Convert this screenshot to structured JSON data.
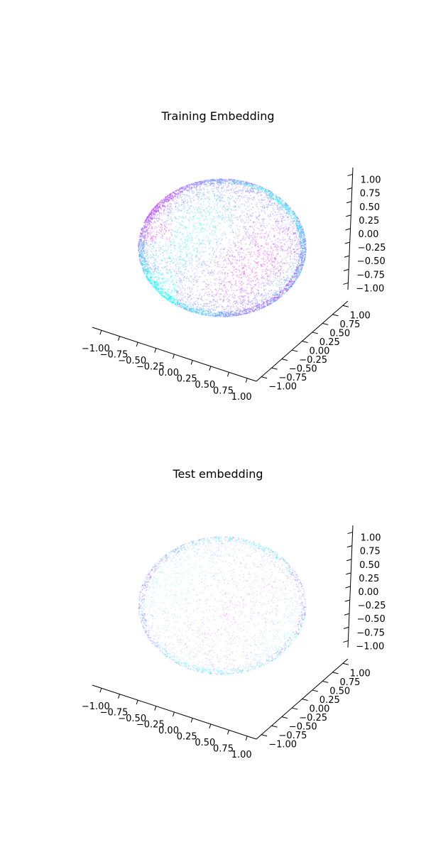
{
  "figure": {
    "background": "#ffffff"
  },
  "chart_data": [
    {
      "type": "scatter",
      "projection": "3d",
      "title": "Training Embedding",
      "shape": "unit sphere surface",
      "x_range": [
        -1,
        1
      ],
      "y_range": [
        -1,
        1
      ],
      "z_range": [
        -1,
        1
      ],
      "x_ticks": [
        "−1.00",
        "−0.75",
        "−0.50",
        "−0.25",
        "0.00",
        "0.25",
        "0.50",
        "0.75",
        "1.00"
      ],
      "y_ticks": [
        "−1.00",
        "−0.75",
        "−0.50",
        "−0.25",
        "0.00",
        "0.25",
        "0.50",
        "0.75",
        "1.00"
      ],
      "z_ticks": [
        "−1.00",
        "−0.75",
        "−0.50",
        "−0.25",
        "0.00",
        "0.25",
        "0.50",
        "0.75",
        "1.00"
      ],
      "grid": false,
      "colormap": "cool",
      "colors": [
        "#00ffff",
        "#ff00ff"
      ],
      "point_alpha": 0.35,
      "density": "dense"
    },
    {
      "type": "scatter",
      "projection": "3d",
      "title": "Test embedding",
      "shape": "unit sphere surface",
      "x_range": [
        -1,
        1
      ],
      "y_range": [
        -1,
        1
      ],
      "z_range": [
        -1,
        1
      ],
      "x_ticks": [
        "−1.00",
        "−0.75",
        "−0.50",
        "−0.25",
        "0.00",
        "0.25",
        "0.50",
        "0.75",
        "1.00"
      ],
      "y_ticks": [
        "−1.00",
        "−0.75",
        "−0.50",
        "−0.25",
        "0.00",
        "0.25",
        "0.50",
        "0.75",
        "1.00"
      ],
      "z_ticks": [
        "−1.00",
        "−0.75",
        "−0.50",
        "−0.25",
        "0.00",
        "0.25",
        "0.50",
        "0.75",
        "1.00"
      ],
      "grid": false,
      "colormap": "cool",
      "colors": [
        "#00ffff",
        "#ff00ff"
      ],
      "point_alpha": 0.2,
      "density": "sparse"
    }
  ]
}
